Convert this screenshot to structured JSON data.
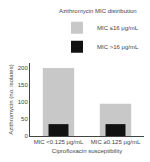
{
  "chart_data": {
    "type": "bar",
    "categories": [
      "MIC <0.125 μg/mL",
      "MIC ≥0.125 μg/mL"
    ],
    "series": [
      {
        "name": "MIC ≤16 μg/mL",
        "color": "#c8c8c8",
        "values": [
          200,
          95
        ]
      },
      {
        "name": "MIC >16 μg/mL",
        "color": "#111111",
        "values": [
          35,
          35
        ]
      }
    ],
    "xlabel": "Ciprofloxacin susceptibility",
    "ylabel": "Azithromycin (no. isolates)",
    "legend_title": "Azithromycin MIC distribution",
    "legend": "upper right",
    "ylim": [
      0,
      215
    ],
    "yticks": [
      0,
      50,
      100,
      150,
      200
    ],
    "grid": false
  }
}
